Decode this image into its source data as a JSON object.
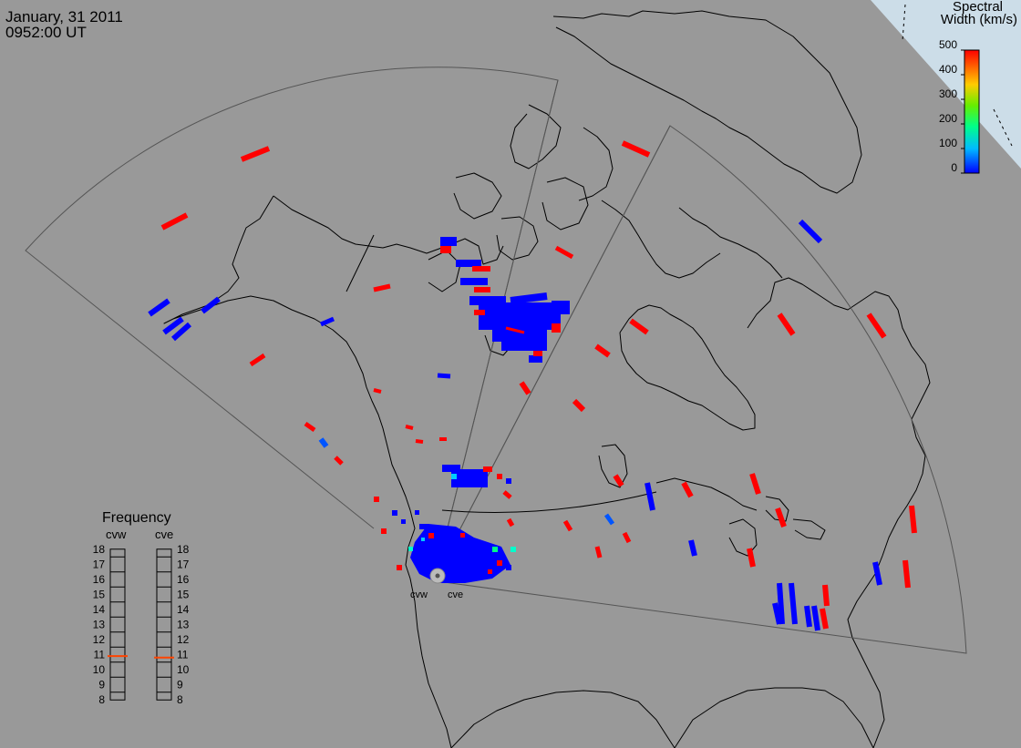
{
  "header": {
    "date": "January, 31 2011",
    "time": "0952:00 UT"
  },
  "colorbar": {
    "title_line1": "Spectral",
    "title_line2": "Width (km/s)",
    "ticks": [
      "500",
      "400",
      "300",
      "200",
      "100",
      "0"
    ],
    "min": 0,
    "max": 500
  },
  "frequency": {
    "title": "Frequency",
    "radars": [
      {
        "label": "cvw",
        "value": 10.9
      },
      {
        "label": "cve",
        "value": 10.8
      }
    ],
    "ticks": [
      "18",
      "17",
      "16",
      "15",
      "14",
      "13",
      "12",
      "11",
      "10",
      "9",
      "8"
    ],
    "min": 8,
    "max": 18
  },
  "stations": {
    "west": "cvw",
    "east": "cve"
  },
  "colors": {
    "background": "#999999",
    "land_outline": "#000000",
    "fov_outline": "#555555",
    "echo_high": "#ff0000",
    "echo_low": "#0000ff",
    "frequency_marker": "#ff4400"
  }
}
